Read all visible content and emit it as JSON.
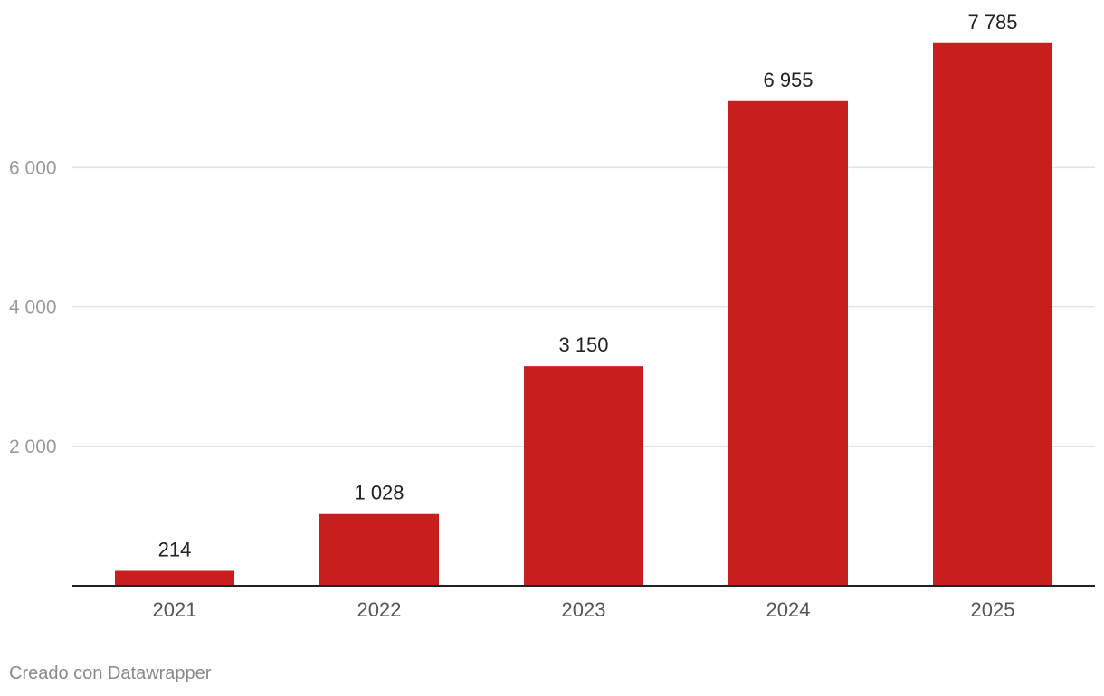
{
  "chart_data": {
    "type": "bar",
    "categories": [
      "2021",
      "2022",
      "2023",
      "2024",
      "2025"
    ],
    "values": [
      214,
      1028,
      3150,
      6955,
      7785
    ],
    "value_labels": [
      "214",
      "1 028",
      "3 150",
      "6 955",
      "7 785"
    ],
    "yticks": [
      2000,
      4000,
      6000
    ],
    "ytick_labels": [
      "2 000",
      "4 000",
      "6 000"
    ],
    "ylim": [
      0,
      8000
    ],
    "grid": true,
    "colors": {
      "bar": "#c81e1e",
      "grid": "#e2e2e2",
      "axis": "#222222",
      "tick_text": "#9a9a9a",
      "category_text": "#555555",
      "value_text": "#222222"
    }
  },
  "footer": {
    "credit": "Creado con Datawrapper"
  }
}
